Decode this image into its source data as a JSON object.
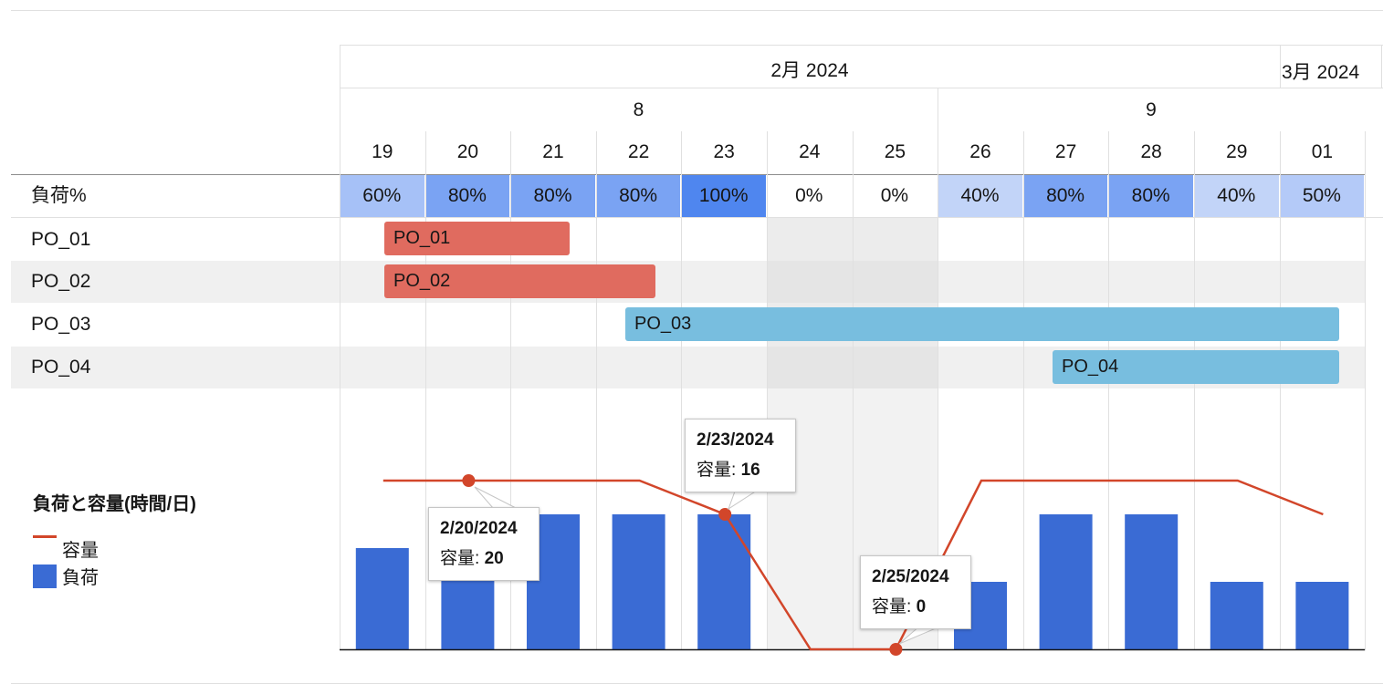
{
  "timeline": {
    "months": [
      {
        "label": "2月 2024"
      },
      {
        "label": "3月 2024"
      }
    ],
    "weeks": [
      {
        "label": "8"
      },
      {
        "label": "9"
      }
    ],
    "days": [
      "19",
      "20",
      "21",
      "22",
      "23",
      "24",
      "25",
      "26",
      "27",
      "28",
      "29",
      "01"
    ]
  },
  "load_row": {
    "label": "負荷%",
    "values": [
      "60%",
      "80%",
      "80%",
      "80%",
      "100%",
      "0%",
      "0%",
      "40%",
      "80%",
      "80%",
      "40%",
      "50%"
    ],
    "colors": [
      "#a6c1f7",
      "#7aa3f3",
      "#7aa3f3",
      "#7aa3f3",
      "#4f86ef",
      "#ffffff",
      "#ffffff",
      "#c2d4f8",
      "#7aa3f3",
      "#7aa3f3",
      "#c2d4f8",
      "#b4caf8"
    ]
  },
  "tasks": [
    {
      "row_label": "PO_01",
      "bar_label": "PO_01",
      "color": "#e06b5f"
    },
    {
      "row_label": "PO_02",
      "bar_label": "PO_02",
      "color": "#e06b5f"
    },
    {
      "row_label": "PO_03",
      "bar_label": "PO_03",
      "color": "#78bedf"
    },
    {
      "row_label": "PO_04",
      "bar_label": "PO_04",
      "color": "#78bedf"
    }
  ],
  "legend": {
    "title": "負荷と容量(時間/日)",
    "capacity_label": "容量",
    "load_label": "負荷",
    "capacity_color": "#d2462a",
    "load_color": "#3a6bd4"
  },
  "tooltips": [
    {
      "date": "2/20/2024",
      "key": "容量:",
      "value": "20"
    },
    {
      "date": "2/23/2024",
      "key": "容量:",
      "value": "16"
    },
    {
      "date": "2/25/2024",
      "key": "容量:",
      "value": "0"
    }
  ],
  "chart_data": {
    "type": "bar",
    "categories": [
      "2/19",
      "2/20",
      "2/21",
      "2/22",
      "2/23",
      "2/24",
      "2/25",
      "2/26",
      "2/27",
      "2/28",
      "2/29",
      "3/01"
    ],
    "ylim": [
      0,
      20
    ],
    "series": [
      {
        "name": "負荷",
        "type": "bar",
        "values": [
          12,
          16,
          16,
          16,
          16,
          0,
          0,
          8,
          16,
          16,
          8,
          8
        ]
      },
      {
        "name": "容量",
        "type": "line",
        "values": [
          20,
          20,
          20,
          20,
          16,
          0,
          0,
          20,
          20,
          20,
          20,
          16
        ]
      }
    ],
    "grid": true,
    "legend": "left"
  }
}
